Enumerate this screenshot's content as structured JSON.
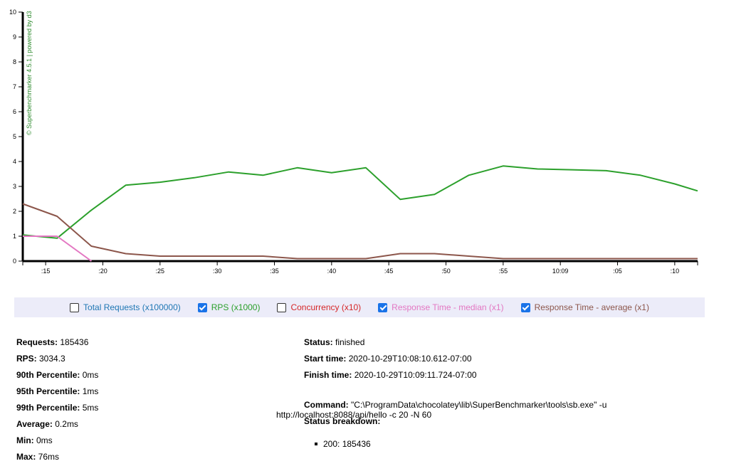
{
  "chart_data": {
    "type": "line",
    "watermark": "© Superbenchmarker 4.5.1 | powered by d3",
    "ylim": [
      0,
      10
    ],
    "y_ticks": [
      0,
      1,
      2,
      3,
      4,
      5,
      6,
      7,
      8,
      9,
      10
    ],
    "x_tick_labels": [
      ":15",
      ":20",
      ":25",
      ":30",
      ":35",
      ":40",
      ":45",
      ":50",
      ":55",
      "10:09",
      ":05",
      ":10"
    ],
    "x_domain_seconds": [
      13,
      72
    ],
    "x_tick_seconds": [
      15,
      20,
      25,
      30,
      35,
      40,
      45,
      50,
      55,
      60,
      65,
      70
    ],
    "series": [
      {
        "name": "RPS (x1000)",
        "color": "#2ca02c",
        "visible": true,
        "x": [
          13,
          16,
          19,
          22,
          25,
          28,
          31,
          34,
          37,
          40,
          43,
          46,
          49,
          52,
          55,
          58,
          61,
          64,
          67,
          70,
          72
        ],
        "values": [
          1.05,
          0.92,
          2.05,
          3.05,
          3.17,
          3.35,
          3.58,
          3.45,
          3.75,
          3.55,
          3.75,
          2.48,
          2.68,
          3.45,
          3.82,
          3.7,
          3.67,
          3.63,
          3.45,
          3.1,
          2.82
        ]
      },
      {
        "name": "Response Time - median (x1)",
        "color": "#e377c2",
        "visible": true,
        "x": [
          13,
          16,
          19
        ],
        "values": [
          1.0,
          1.0,
          0.0
        ]
      },
      {
        "name": "Response Time - average (x1)",
        "color": "#8c564b",
        "visible": true,
        "x": [
          13,
          16,
          19,
          22,
          25,
          28,
          31,
          34,
          37,
          40,
          43,
          46,
          49,
          52,
          55,
          58,
          61,
          64,
          67,
          70,
          72
        ],
        "values": [
          2.3,
          1.8,
          0.6,
          0.3,
          0.2,
          0.2,
          0.2,
          0.2,
          0.1,
          0.1,
          0.1,
          0.3,
          0.3,
          0.2,
          0.1,
          0.1,
          0.1,
          0.1,
          0.1,
          0.1,
          0.1
        ]
      }
    ]
  },
  "legend": [
    {
      "label": "Total Requests (x100000)",
      "color": "#1f77b4",
      "checked": false
    },
    {
      "label": "RPS (x1000)",
      "color": "#2ca02c",
      "checked": true
    },
    {
      "label": "Concurrency (x10)",
      "color": "#d62728",
      "checked": false
    },
    {
      "label": "Response Time - median (x1)",
      "color": "#e377c2",
      "checked": true
    },
    {
      "label": "Response Time - average (x1)",
      "color": "#8c564b",
      "checked": true
    }
  ],
  "stats": [
    {
      "label": "Requests:",
      "value": "185436"
    },
    {
      "label": "RPS:",
      "value": "3034.3"
    },
    {
      "label": "90th Percentile:",
      "value": "0ms"
    },
    {
      "label": "95th Percentile:",
      "value": "1ms"
    },
    {
      "label": "99th Percentile:",
      "value": "5ms"
    },
    {
      "label": "Average:",
      "value": "0.2ms"
    },
    {
      "label": "Min:",
      "value": "0ms"
    },
    {
      "label": "Max:",
      "value": "76ms"
    }
  ],
  "info": {
    "status_label": "Status:",
    "status_value": "finished",
    "start_label": "Start time:",
    "start_value": "2020-10-29T10:08:10.612-07:00",
    "finish_label": "Finish time:",
    "finish_value": "2020-10-29T10:09:11.724-07:00",
    "command_label": "Command:",
    "command_line1": "\"C:\\ProgramData\\chocolatey\\lib\\SuperBenchmarker\\tools\\sb.exe\" -u",
    "command_line2": "http://localhost:8088/api/hello -c 20 -N 60",
    "breakdown_label": "Status breakdown:",
    "breakdown_items": [
      "200: 185436"
    ]
  }
}
